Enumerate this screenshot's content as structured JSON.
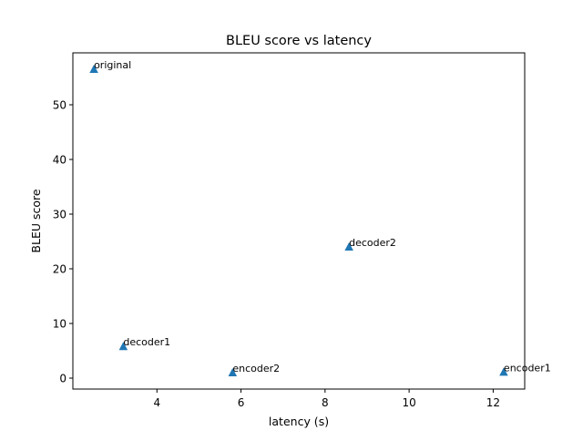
{
  "chart_data": {
    "type": "scatter",
    "title": "BLEU score vs latency",
    "xlabel": "latency (s)",
    "ylabel": "BLEU score",
    "xlim": [
      2.0,
      12.75
    ],
    "ylim": [
      -2.0,
      59.5
    ],
    "x_ticks": [
      4,
      6,
      8,
      10,
      12
    ],
    "y_ticks": [
      0,
      10,
      20,
      30,
      40,
      50
    ],
    "grid": false,
    "marker": "triangle-up",
    "color": "#1f77b4",
    "points": [
      {
        "label": "original",
        "x": 2.5,
        "y": 56.5
      },
      {
        "label": "decoder1",
        "x": 3.2,
        "y": 5.8
      },
      {
        "label": "encoder2",
        "x": 5.8,
        "y": 1.0
      },
      {
        "label": "decoder2",
        "x": 8.57,
        "y": 24.0
      },
      {
        "label": "encoder1",
        "x": 12.25,
        "y": 1.1
      }
    ]
  }
}
